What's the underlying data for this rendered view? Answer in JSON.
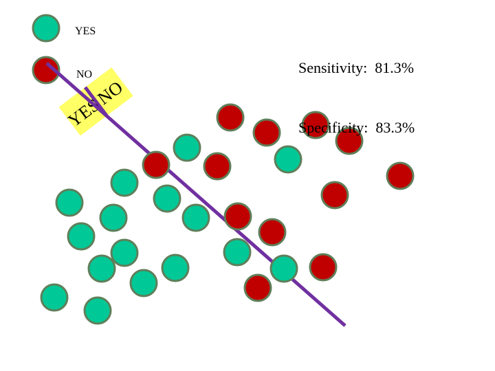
{
  "legend": {
    "yes_label": "YES",
    "no_label": "NO",
    "yes_color": "#00c896",
    "no_color": "#c00000"
  },
  "metrics": {
    "sensitivity": "Sensitivity:  81.3%",
    "specificity": "Specificity:  83.3%"
  },
  "boundary": {
    "color": "#7030a0",
    "tag_color": "#ffff66",
    "tag_yes": "YES",
    "tag_no": "NO"
  }
}
